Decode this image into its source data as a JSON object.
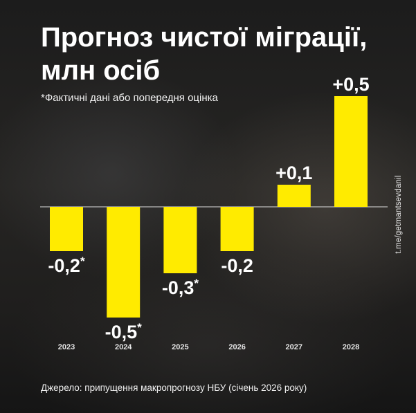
{
  "title": "Прогноз чистої міграції, млн осіб",
  "subtitle": "*Фактичні дані або попередня оцінка",
  "source": "Джерело: припущення макропрогнозу НБУ (січень 2026 року)",
  "side_link": "t.me/getmantsevdanil",
  "colors": {
    "bar": "#ffeb00",
    "baseline": "#dddddd",
    "text": "#ffffff"
  },
  "chart_data": {
    "type": "bar",
    "categories": [
      "2023",
      "2024",
      "2025",
      "2026",
      "2027",
      "2028"
    ],
    "values": [
      -0.2,
      -0.5,
      -0.3,
      -0.2,
      0.1,
      0.5
    ],
    "data_labels": [
      "-0,2",
      "-0,5",
      "-0,3",
      "-0,2",
      "+0,1",
      "+0,5"
    ],
    "label_marks": [
      "*",
      "*",
      "*",
      "",
      "",
      ""
    ],
    "ylim": [
      -0.62,
      0.52
    ],
    "grid": false,
    "legend": "none"
  }
}
